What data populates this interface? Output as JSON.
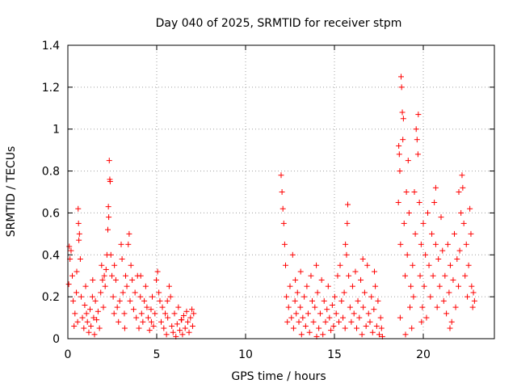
{
  "chart_data": {
    "type": "scatter",
    "title": "Day 040 of 2025, SRMTID for receiver stpm",
    "xlabel": "GPS time / hours",
    "ylabel": "SRMTID / TECUs",
    "xlim": [
      0,
      24
    ],
    "ylim": [
      0,
      1.4
    ],
    "xticks": [
      0,
      5,
      10,
      15,
      20
    ],
    "yticks": [
      0,
      0.2,
      0.4,
      0.6,
      0.8,
      1,
      1.2,
      1.4
    ],
    "ytick_labels": [
      "0",
      "0.2",
      "0.4",
      "0.6",
      "0.8",
      "1",
      "1.2",
      "1.4"
    ],
    "grid": true,
    "marker": "+",
    "series": [
      {
        "name": "SRMTID",
        "color": "#ff0000",
        "points": [
          [
            0.05,
            0.26
          ],
          [
            0.08,
            0.44
          ],
          [
            0.12,
            0.38
          ],
          [
            0.18,
            0.42
          ],
          [
            0.25,
            0.3
          ],
          [
            0.3,
            0.18
          ],
          [
            0.35,
            0.06
          ],
          [
            0.4,
            0.12
          ],
          [
            0.48,
            0.22
          ],
          [
            0.55,
            0.08
          ],
          [
            0.58,
            0.62
          ],
          [
            0.6,
            0.55
          ],
          [
            0.62,
            0.47
          ],
          [
            0.65,
            0.5
          ],
          [
            0.7,
            0.38
          ],
          [
            0.75,
            0.2
          ],
          [
            0.82,
            0.1
          ],
          [
            0.9,
            0.05
          ],
          [
            0.95,
            0.16
          ],
          [
            1.0,
            0.25
          ],
          [
            1.05,
            0.12
          ],
          [
            1.1,
            0.08
          ],
          [
            1.18,
            0.03
          ],
          [
            1.25,
            0.14
          ],
          [
            1.3,
            0.06
          ],
          [
            1.38,
            0.2
          ],
          [
            1.45,
            0.1
          ],
          [
            1.5,
            0.02
          ],
          [
            1.55,
            0.18
          ],
          [
            1.62,
            0.09
          ],
          [
            1.7,
            0.13
          ],
          [
            1.78,
            0.05
          ],
          [
            1.85,
            0.22
          ],
          [
            1.9,
            0.35
          ],
          [
            1.95,
            0.28
          ],
          [
            2.0,
            0.15
          ],
          [
            2.05,
            0.3
          ],
          [
            2.1,
            0.25
          ],
          [
            2.15,
            0.33
          ],
          [
            2.2,
            0.4
          ],
          [
            2.25,
            0.52
          ],
          [
            2.28,
            0.63
          ],
          [
            2.3,
            0.58
          ],
          [
            2.33,
            0.85
          ],
          [
            2.36,
            0.76
          ],
          [
            2.38,
            0.75
          ],
          [
            2.42,
            0.4
          ],
          [
            2.48,
            0.3
          ],
          [
            2.55,
            0.2
          ],
          [
            2.62,
            0.35
          ],
          [
            2.7,
            0.28
          ],
          [
            2.78,
            0.15
          ],
          [
            2.85,
            0.08
          ],
          [
            2.92,
            0.18
          ],
          [
            3.0,
            0.45
          ],
          [
            3.05,
            0.38
          ],
          [
            3.1,
            0.22
          ],
          [
            3.18,
            0.12
          ],
          [
            3.25,
            0.3
          ],
          [
            3.32,
            0.25
          ],
          [
            3.4,
            0.45
          ],
          [
            3.45,
            0.5
          ],
          [
            3.5,
            0.18
          ],
          [
            3.55,
            0.35
          ],
          [
            3.62,
            0.28
          ],
          [
            3.7,
            0.14
          ],
          [
            3.78,
            0.22
          ],
          [
            3.85,
            0.1
          ],
          [
            3.92,
            0.3
          ],
          [
            4.0,
            0.05
          ],
          [
            4.08,
            0.2
          ],
          [
            4.15,
            0.12
          ],
          [
            4.22,
            0.08
          ],
          [
            4.3,
            0.18
          ],
          [
            4.38,
            0.25
          ],
          [
            4.45,
            0.15
          ],
          [
            4.52,
            0.1
          ],
          [
            4.6,
            0.04
          ],
          [
            4.68,
            0.14
          ],
          [
            4.75,
            0.2
          ],
          [
            4.82,
            0.06
          ],
          [
            4.9,
            0.12
          ],
          [
            4.98,
            0.28
          ],
          [
            5.05,
            0.32
          ],
          [
            5.12,
            0.22
          ],
          [
            5.18,
            0.18
          ],
          [
            5.25,
            0.08
          ],
          [
            5.32,
            0.15
          ],
          [
            5.4,
            0.05
          ],
          [
            5.48,
            0.12
          ],
          [
            5.55,
            0.02
          ],
          [
            5.62,
            0.1
          ],
          [
            5.7,
            0.25
          ],
          [
            5.78,
            0.2
          ],
          [
            5.85,
            0.06
          ],
          [
            5.92,
            0.03
          ],
          [
            6.0,
            0.12
          ],
          [
            6.08,
            0.01
          ],
          [
            6.15,
            0.07
          ],
          [
            6.22,
            0.15
          ],
          [
            6.3,
            0.04
          ],
          [
            6.38,
            0.09
          ],
          [
            6.45,
            0.02
          ],
          [
            6.52,
            0.11
          ],
          [
            6.6,
            0.05
          ],
          [
            6.68,
            0.13
          ],
          [
            6.75,
            0.08
          ],
          [
            6.82,
            0.03
          ],
          [
            6.9,
            0.1
          ],
          [
            6.98,
            0.14
          ],
          [
            7.02,
            0.06
          ],
          [
            7.08,
            0.12
          ],
          [
            0.5,
            0.32
          ],
          [
            1.4,
            0.28
          ],
          [
            2.6,
            0.12
          ],
          [
            3.2,
            0.05
          ],
          [
            4.1,
            0.3
          ],
          [
            4.7,
            0.08
          ],
          [
            5.6,
            0.18
          ],
          [
            6.4,
            0.09
          ],
          [
            12.0,
            0.78
          ],
          [
            12.05,
            0.7
          ],
          [
            12.1,
            0.62
          ],
          [
            12.15,
            0.55
          ],
          [
            12.2,
            0.45
          ],
          [
            12.25,
            0.35
          ],
          [
            12.3,
            0.2
          ],
          [
            12.35,
            0.08
          ],
          [
            12.42,
            0.15
          ],
          [
            12.5,
            0.25
          ],
          [
            12.58,
            0.1
          ],
          [
            12.65,
            0.4
          ],
          [
            12.7,
            0.05
          ],
          [
            12.78,
            0.18
          ],
          [
            12.85,
            0.12
          ],
          [
            12.92,
            0.22
          ],
          [
            13.0,
            0.08
          ],
          [
            13.08,
            0.15
          ],
          [
            13.15,
            0.02
          ],
          [
            13.22,
            0.1
          ],
          [
            13.3,
            0.2
          ],
          [
            13.38,
            0.06
          ],
          [
            13.45,
            0.25
          ],
          [
            13.52,
            0.12
          ],
          [
            13.6,
            0.03
          ],
          [
            13.68,
            0.3
          ],
          [
            13.75,
            0.18
          ],
          [
            13.82,
            0.08
          ],
          [
            13.9,
            0.15
          ],
          [
            13.98,
            0.35
          ],
          [
            14.05,
            0.22
          ],
          [
            14.12,
            0.05
          ],
          [
            14.2,
            0.12
          ],
          [
            14.28,
            0.28
          ],
          [
            14.35,
            0.02
          ],
          [
            14.42,
            0.18
          ],
          [
            14.5,
            0.08
          ],
          [
            14.58,
            0.14
          ],
          [
            14.65,
            0.25
          ],
          [
            14.72,
            0.1
          ],
          [
            14.8,
            0.04
          ],
          [
            14.88,
            0.16
          ],
          [
            14.95,
            0.06
          ],
          [
            15.02,
            0.2
          ],
          [
            15.1,
            0.12
          ],
          [
            15.18,
            0.3
          ],
          [
            15.25,
            0.08
          ],
          [
            15.32,
            0.35
          ],
          [
            15.4,
            0.18
          ],
          [
            15.48,
            0.1
          ],
          [
            15.55,
            0.22
          ],
          [
            15.62,
            0.45
          ],
          [
            15.68,
            0.4
          ],
          [
            15.72,
            0.55
          ],
          [
            15.75,
            0.64
          ],
          [
            15.8,
            0.3
          ],
          [
            15.88,
            0.15
          ],
          [
            15.95,
            0.08
          ],
          [
            16.02,
            0.25
          ],
          [
            16.1,
            0.12
          ],
          [
            16.18,
            0.32
          ],
          [
            16.25,
            0.05
          ],
          [
            16.32,
            0.18
          ],
          [
            16.4,
            0.1
          ],
          [
            16.48,
            0.28
          ],
          [
            16.55,
            0.02
          ],
          [
            16.62,
            0.15
          ],
          [
            16.7,
            0.22
          ],
          [
            16.78,
            0.06
          ],
          [
            16.85,
            0.35
          ],
          [
            16.92,
            0.12
          ],
          [
            17.0,
            0.08
          ],
          [
            17.08,
            0.2
          ],
          [
            17.15,
            0.03
          ],
          [
            17.22,
            0.14
          ],
          [
            17.3,
            0.25
          ],
          [
            17.38,
            0.06
          ],
          [
            17.45,
            0.18
          ],
          [
            17.52,
            0.02
          ],
          [
            17.6,
            0.1
          ],
          [
            17.65,
            0.05
          ],
          [
            17.7,
            0.01
          ],
          [
            13.1,
            0.32
          ],
          [
            14.0,
            0.01
          ],
          [
            15.6,
            0.05
          ],
          [
            16.6,
            0.38
          ],
          [
            17.25,
            0.32
          ],
          [
            12.8,
            0.28
          ],
          [
            18.6,
            0.65
          ],
          [
            18.62,
            0.92
          ],
          [
            18.65,
            0.88
          ],
          [
            18.68,
            0.8
          ],
          [
            18.72,
            0.45
          ],
          [
            18.75,
            1.25
          ],
          [
            18.78,
            1.2
          ],
          [
            18.82,
            1.08
          ],
          [
            18.85,
            0.95
          ],
          [
            18.88,
            1.05
          ],
          [
            18.92,
            0.55
          ],
          [
            18.98,
            0.3
          ],
          [
            19.05,
            0.7
          ],
          [
            19.1,
            0.4
          ],
          [
            19.15,
            0.85
          ],
          [
            19.2,
            0.6
          ],
          [
            19.25,
            0.15
          ],
          [
            19.3,
            0.25
          ],
          [
            19.35,
            0.05
          ],
          [
            19.4,
            0.35
          ],
          [
            19.45,
            0.2
          ],
          [
            19.5,
            0.7
          ],
          [
            19.55,
            0.5
          ],
          [
            19.6,
            1.0
          ],
          [
            19.65,
            0.95
          ],
          [
            19.7,
            0.88
          ],
          [
            19.72,
            1.07
          ],
          [
            19.78,
            0.65
          ],
          [
            19.82,
            0.3
          ],
          [
            19.88,
            0.45
          ],
          [
            19.95,
            0.15
          ],
          [
            20.0,
            0.55
          ],
          [
            20.05,
            0.25
          ],
          [
            20.12,
            0.4
          ],
          [
            20.18,
            0.1
          ],
          [
            20.25,
            0.6
          ],
          [
            20.32,
            0.35
          ],
          [
            20.4,
            0.2
          ],
          [
            20.48,
            0.5
          ],
          [
            20.55,
            0.3
          ],
          [
            20.62,
            0.65
          ],
          [
            20.7,
            0.45
          ],
          [
            20.78,
            0.15
          ],
          [
            20.85,
            0.38
          ],
          [
            20.92,
            0.25
          ],
          [
            21.0,
            0.58
          ],
          [
            21.08,
            0.42
          ],
          [
            21.15,
            0.18
          ],
          [
            21.22,
            0.3
          ],
          [
            21.3,
            0.12
          ],
          [
            21.38,
            0.45
          ],
          [
            21.45,
            0.22
          ],
          [
            21.52,
            0.35
          ],
          [
            21.6,
            0.08
          ],
          [
            21.68,
            0.28
          ],
          [
            21.75,
            0.5
          ],
          [
            21.82,
            0.15
          ],
          [
            21.9,
            0.38
          ],
          [
            21.98,
            0.25
          ],
          [
            22.05,
            0.42
          ],
          [
            22.12,
            0.6
          ],
          [
            22.18,
            0.78
          ],
          [
            22.22,
            0.72
          ],
          [
            22.28,
            0.55
          ],
          [
            22.35,
            0.3
          ],
          [
            22.42,
            0.45
          ],
          [
            22.48,
            0.2
          ],
          [
            22.55,
            0.35
          ],
          [
            22.62,
            0.62
          ],
          [
            22.68,
            0.5
          ],
          [
            22.72,
            0.25
          ],
          [
            22.78,
            0.15
          ],
          [
            22.82,
            0.22
          ],
          [
            22.88,
            0.18
          ],
          [
            18.7,
            0.1
          ],
          [
            19.0,
            0.02
          ],
          [
            19.9,
            0.08
          ],
          [
            20.7,
            0.72
          ],
          [
            21.5,
            0.05
          ],
          [
            22.0,
            0.7
          ]
        ]
      }
    ]
  }
}
